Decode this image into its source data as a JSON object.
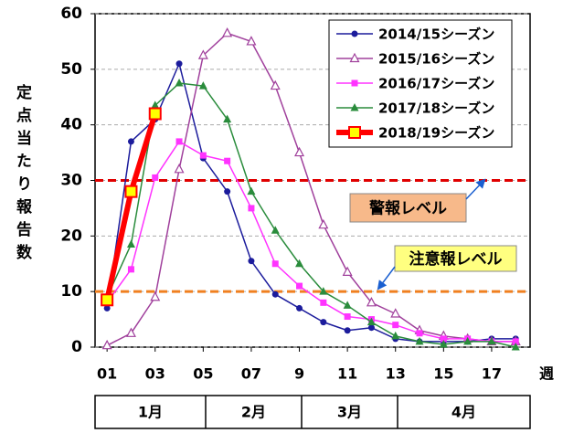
{
  "chart_data": {
    "type": "line",
    "y_label": "定点当たり報告数",
    "x_label": "週",
    "x": [
      1,
      2,
      3,
      4,
      5,
      6,
      7,
      8,
      9,
      10,
      11,
      12,
      13,
      14,
      15,
      16,
      17,
      18
    ],
    "xlim": [
      0.5,
      18.6
    ],
    "xticks": [
      {
        "value": 1,
        "label": "01"
      },
      {
        "value": 3,
        "label": "03"
      },
      {
        "value": 5,
        "label": "05"
      },
      {
        "value": 7,
        "label": "07"
      },
      9,
      11,
      13,
      15,
      17
    ],
    "ylim": [
      0,
      60
    ],
    "yticks": [
      0,
      10,
      20,
      30,
      40,
      50,
      60
    ],
    "grid": true,
    "legend": "upper right",
    "series": [
      {
        "name": "2014/15シーズン",
        "color": "#1c1c9c",
        "marker": "circle",
        "values": [
          7,
          37,
          41,
          51,
          34,
          28,
          15.5,
          9.5,
          7,
          4.5,
          3,
          3.5,
          1.5,
          1,
          1,
          1,
          1.5,
          1.5
        ]
      },
      {
        "name": "2015/16シーズン",
        "color": "#a0409c",
        "marker": "open-triangle",
        "values": [
          0.3,
          2.5,
          9,
          32,
          52.5,
          56.5,
          55,
          47,
          35,
          22,
          13.5,
          8,
          6,
          3,
          2,
          1.5,
          1,
          1
        ]
      },
      {
        "name": "2016/17シーズン",
        "color": "#ff33ff",
        "marker": "square",
        "values": [
          8,
          14,
          30.5,
          37,
          34.5,
          33.5,
          25,
          15,
          11,
          8,
          5.5,
          5,
          4,
          2.5,
          1.5,
          1.5,
          1,
          1
        ]
      },
      {
        "name": "2017/18シーズン",
        "color": "#2a8c3c",
        "marker": "triangle",
        "values": [
          9,
          18.5,
          43.5,
          47.5,
          47,
          41,
          28,
          21,
          15,
          10,
          7.5,
          4.5,
          2,
          1,
          0.5,
          1,
          1,
          0
        ]
      },
      {
        "name": "2018/19シーズン",
        "color": "#ff0000",
        "marker": "yellow-square",
        "values": [
          8.5,
          28,
          42,
          null,
          null,
          null,
          null,
          null,
          null,
          null,
          null,
          null,
          null,
          null,
          null,
          null,
          null,
          null
        ]
      }
    ],
    "reference_lines": [
      {
        "value": 30,
        "label": "警報レベル",
        "color": "#e00000"
      },
      {
        "value": 10,
        "label": "注意報レベル",
        "color": "#f08020"
      }
    ],
    "months": [
      "1月",
      "2月",
      "3月",
      "4月"
    ]
  }
}
